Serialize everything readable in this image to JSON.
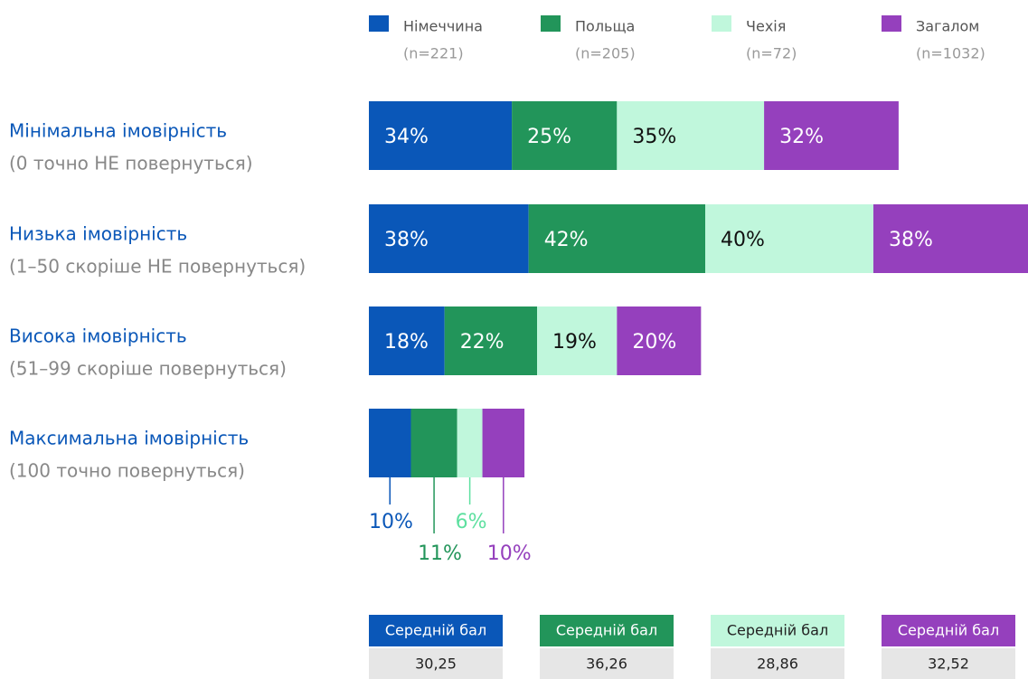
{
  "chart_data": {
    "type": "stacked_bar_horizontal",
    "categories": [
      "Мінімальна імовірність",
      "Низька імовірність",
      "Висока імовірність",
      "Максимальна імовірність"
    ],
    "category_notes": [
      "(0 точно НЕ повернуться)",
      "(1–50 скоріше НЕ повернуться)",
      "(51–99 скоріше повернуться)",
      "(100 точно повернуться)"
    ],
    "series": [
      {
        "name": "Німеччина",
        "sample": "(n=221)",
        "color": "#0a57b8",
        "values": [
          34,
          38,
          18,
          10
        ],
        "value_labels": [
          "34%",
          "38%",
          "18%",
          "10%"
        ],
        "average": 30.25,
        "average_label": "30,25"
      },
      {
        "name": "Польща",
        "sample": "(n=205)",
        "color": "#22955a",
        "values": [
          25,
          42,
          22,
          11
        ],
        "value_labels": [
          "25%",
          "42%",
          "22%",
          "11%"
        ],
        "average": 36.26,
        "average_label": "36,26"
      },
      {
        "name": "Чехія",
        "sample": "(n=72)",
        "color": "#c0f7dc",
        "values": [
          35,
          40,
          19,
          6
        ],
        "value_labels": [
          "35%",
          "40%",
          "19%",
          "6%"
        ],
        "average": 28.86,
        "average_label": "28,86"
      },
      {
        "name": "Загалом",
        "sample": "(n=1032)",
        "color": "#9540bd",
        "values": [
          32,
          38,
          20,
          10
        ],
        "value_labels": [
          "32%",
          "38%",
          "20%",
          "10%"
        ],
        "average": 32.52,
        "average_label": "32,52"
      }
    ],
    "average_title": "Середній бал"
  }
}
